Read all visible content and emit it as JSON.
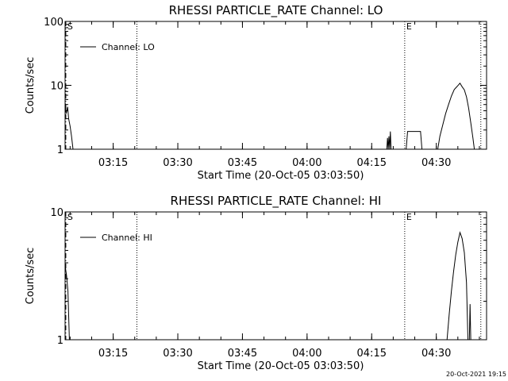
{
  "footer": {
    "timestamp": "20-Oct-2021 19:15"
  },
  "chart_data": [
    {
      "type": "line",
      "title": "RHESSI PARTICLE_RATE Channel: LO",
      "xlabel": "Start Time (20-Oct-05 03:03:50)",
      "ylabel": "Counts/sec",
      "y_scale": "log",
      "ylim": [
        1,
        100
      ],
      "y_ticks": [
        {
          "value": 1,
          "label": "1"
        },
        {
          "value": 10,
          "label": "10"
        },
        {
          "value": 100,
          "label": "100"
        }
      ],
      "xlim": [
        "03:03:50",
        "04:41:40"
      ],
      "x_ticks": [
        "03:15",
        "03:30",
        "03:45",
        "04:00",
        "04:15",
        "04:30"
      ],
      "legend": {
        "placement": "top-left",
        "entries": [
          "Channel: LO"
        ]
      },
      "markers": [
        {
          "label": "S",
          "x": "03:04:00",
          "style": "dash-dot"
        },
        {
          "label": "",
          "x": "03:20:30",
          "style": "dotted"
        },
        {
          "label": "E",
          "x": "04:22:40",
          "style": "dotted"
        },
        {
          "label": "",
          "x": "04:40:20",
          "style": "dotted"
        }
      ],
      "series": [
        {
          "name": "Channel: LO",
          "points": [
            [
              "03:03:50",
              5.5
            ],
            [
              "03:04:05",
              3.6
            ],
            [
              "03:04:25",
              4.6
            ],
            [
              "03:04:40",
              3.0
            ],
            [
              "03:05:00",
              2.3
            ],
            [
              "03:05:20",
              1.6
            ],
            [
              "03:05:40",
              1.0
            ],
            [
              "04:18:30",
              1.0
            ],
            [
              "04:18:40",
              1.5
            ],
            [
              "04:18:50",
              1.0
            ],
            [
              "04:19:00",
              1.6
            ],
            [
              "04:19:10",
              1.0
            ],
            [
              "04:19:20",
              1.9
            ],
            [
              "04:19:30",
              1.0
            ],
            [
              "04:23:00",
              1.0
            ],
            [
              "04:23:20",
              1.9
            ],
            [
              "04:26:20",
              1.9
            ],
            [
              "04:26:40",
              1.0
            ],
            [
              "04:30:20",
              1.0
            ],
            [
              "04:30:50",
              1.6
            ],
            [
              "04:31:30",
              2.4
            ],
            [
              "04:32:10",
              3.6
            ],
            [
              "04:32:50",
              5.0
            ],
            [
              "04:33:30",
              6.8
            ],
            [
              "04:34:10",
              8.6
            ],
            [
              "04:34:50",
              9.6
            ],
            [
              "04:35:30",
              10.8
            ],
            [
              "04:36:00",
              9.5
            ],
            [
              "04:36:30",
              8.5
            ],
            [
              "04:37:00",
              6.6
            ],
            [
              "04:37:30",
              4.4
            ],
            [
              "04:38:00",
              2.6
            ],
            [
              "04:38:30",
              1.5
            ],
            [
              "04:38:50",
              1.0
            ]
          ]
        }
      ]
    },
    {
      "type": "line",
      "title": "RHESSI PARTICLE_RATE Channel: HI",
      "xlabel": "Start Time (20-Oct-05 03:03:50)",
      "ylabel": "Counts/sec",
      "y_scale": "log",
      "ylim": [
        1,
        10
      ],
      "y_ticks": [
        {
          "value": 1,
          "label": "1"
        },
        {
          "value": 10,
          "label": "10"
        }
      ],
      "xlim": [
        "03:03:50",
        "04:41:40"
      ],
      "x_ticks": [
        "03:15",
        "03:30",
        "03:45",
        "04:00",
        "04:15",
        "04:30"
      ],
      "legend": {
        "placement": "top-left",
        "entries": [
          "Channel: HI"
        ]
      },
      "markers": [
        {
          "label": "S",
          "x": "03:04:00",
          "style": "dash-dot"
        },
        {
          "label": "",
          "x": "03:20:30",
          "style": "dotted"
        },
        {
          "label": "E",
          "x": "04:22:40",
          "style": "dotted"
        },
        {
          "label": "",
          "x": "04:40:20",
          "style": "dotted"
        }
      ],
      "series": [
        {
          "name": "Channel: HI",
          "points": [
            [
              "03:03:50",
              3.8
            ],
            [
              "03:04:10",
              3.2
            ],
            [
              "03:04:30",
              2.4
            ],
            [
              "03:04:50",
              1.0
            ],
            [
              "04:32:30",
              1.0
            ],
            [
              "04:33:00",
              1.6
            ],
            [
              "04:33:30",
              2.4
            ],
            [
              "04:34:00",
              3.4
            ],
            [
              "04:34:30",
              4.6
            ],
            [
              "04:35:00",
              5.8
            ],
            [
              "04:35:30",
              6.9
            ],
            [
              "04:36:00",
              6.2
            ],
            [
              "04:36:30",
              4.8
            ],
            [
              "04:37:00",
              2.8
            ],
            [
              "04:37:20",
              1.0
            ],
            [
              "04:37:40",
              1.0
            ],
            [
              "04:37:50",
              1.9
            ],
            [
              "04:38:00",
              1.0
            ]
          ]
        }
      ]
    }
  ]
}
